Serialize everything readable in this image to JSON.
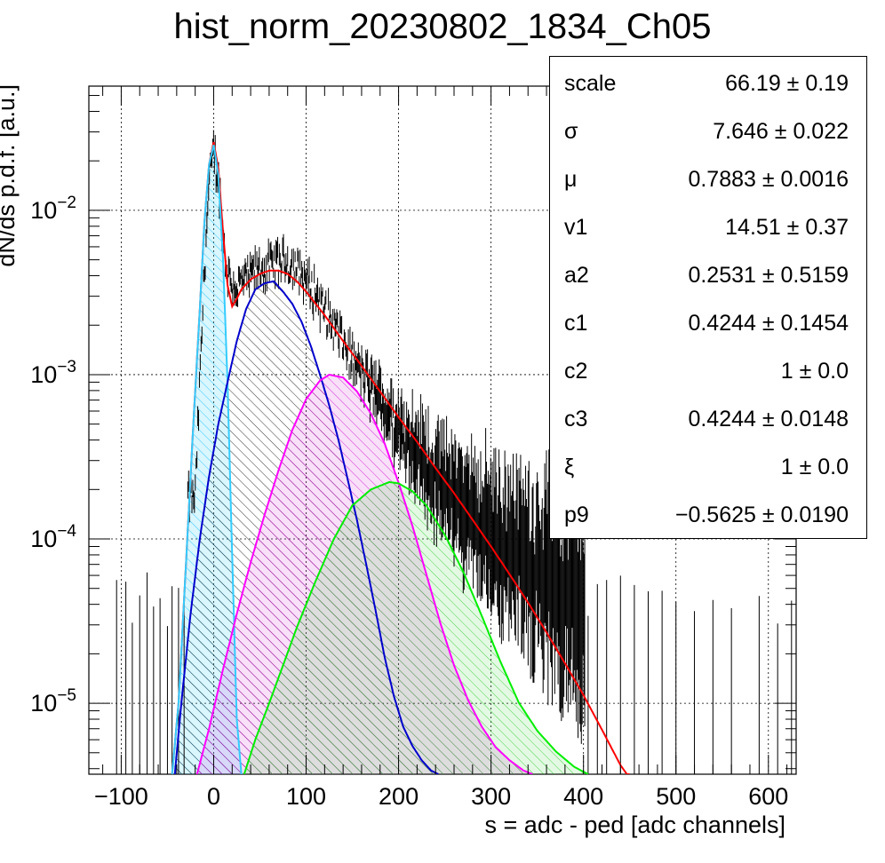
{
  "chart_data": {
    "type": "histogram-with-fit",
    "title": "hist_norm_20230802_1834_Ch05",
    "xlabel": "s = adc - ped [adc channels]",
    "ylabel": "dN/ds p.d.f. [a.u.]",
    "xlim": [
      -135,
      630
    ],
    "ylim": [
      3.7e-06,
      0.057
    ],
    "yscale": "log",
    "grid": true,
    "x_ticks": [
      -100,
      0,
      100,
      200,
      300,
      400,
      500,
      600
    ],
    "y_ticks": [
      {
        "value": 1e-05,
        "base": "10",
        "exp": "−5"
      },
      {
        "value": 0.0001,
        "base": "10",
        "exp": "−4"
      },
      {
        "value": 0.001,
        "base": "10",
        "exp": "−3"
      },
      {
        "value": 0.01,
        "base": "10",
        "exp": "−2"
      }
    ],
    "histogram": {
      "color": "#000000",
      "x": [
        -20,
        -15,
        -10,
        -5,
        0,
        5,
        10,
        15,
        20,
        25,
        30,
        40,
        50,
        60,
        70,
        80,
        90,
        100,
        110,
        120,
        130,
        140,
        150,
        160,
        170,
        180,
        190,
        200,
        220,
        240,
        260,
        280,
        300,
        320,
        340,
        360,
        380,
        400
      ],
      "y": [
        0.00018,
        0.0009,
        0.0045,
        0.014,
        0.024,
        0.016,
        0.0068,
        0.0042,
        0.0035,
        0.0034,
        0.0036,
        0.004,
        0.0044,
        0.0046,
        0.0048,
        0.005,
        0.0044,
        0.0038,
        0.0032,
        0.0025,
        0.002,
        0.0016,
        0.00125,
        0.001,
        0.00085,
        0.0007,
        0.00058,
        0.00048,
        0.00034,
        0.00024,
        0.00018,
        0.00014,
        0.00011,
        8.5e-05,
        7e-05,
        6e-05,
        5e-05,
        4e-05
      ]
    },
    "series": [
      {
        "color": "#ff0000",
        "x": [
          -45,
          -38,
          -30,
          -22,
          -15,
          -10,
          -5,
          0,
          5,
          10,
          15,
          20,
          25,
          30,
          40,
          50,
          60,
          70,
          80,
          90,
          100,
          120,
          140,
          160,
          180,
          200,
          220,
          240,
          260,
          280,
          300,
          320,
          340,
          360,
          380,
          400,
          420,
          440,
          450
        ],
        "y": [
          3.7e-06,
          1e-05,
          7e-05,
          0.0005,
          0.0025,
          0.0085,
          0.019,
          0.026,
          0.018,
          0.0075,
          0.0035,
          0.0026,
          0.0029,
          0.0033,
          0.0038,
          0.0041,
          0.0043,
          0.0043,
          0.0041,
          0.0037,
          0.0032,
          0.0023,
          0.0016,
          0.00113,
          0.00079,
          0.00055,
          0.00039,
          0.00027,
          0.00019,
          0.000131,
          9e-05,
          6.1e-05,
          4.1e-05,
          2.7e-05,
          1.75e-05,
          1.12e-05,
          6.9e-06,
          4.2e-06,
          3.5e-06
        ]
      },
      {
        "color": "#33ccff",
        "fill_color": "#33ccff",
        "x": [
          -45,
          -38,
          -30,
          -22,
          -15,
          -10,
          -5,
          0,
          5,
          10,
          15,
          20,
          25,
          30
        ],
        "y": [
          3.7e-06,
          1e-05,
          7e-05,
          0.0005,
          0.0025,
          0.0085,
          0.019,
          0.025,
          0.0165,
          0.0052,
          0.0009,
          8e-05,
          8e-06,
          3.7e-06
        ]
      },
      {
        "color": "#0000cc",
        "fill_color": "#000000",
        "x": [
          -42,
          -35,
          -25,
          -15,
          -5,
          5,
          15,
          25,
          35,
          45,
          55,
          65,
          75,
          85,
          95,
          105,
          115,
          125,
          135,
          145,
          155,
          165,
          175,
          185,
          195,
          205,
          215,
          225,
          235,
          243
        ],
        "y": [
          3.7e-06,
          1e-05,
          3.5e-05,
          0.0001,
          0.00024,
          0.0005,
          0.0009,
          0.0016,
          0.0025,
          0.0033,
          0.0036,
          0.0037,
          0.0032,
          0.0027,
          0.0021,
          0.0015,
          0.001,
          0.00065,
          0.0004,
          0.00023,
          0.00013,
          7e-05,
          3.7e-05,
          1.9e-05,
          1.1e-05,
          7.2e-06,
          5.5e-06,
          4.5e-06,
          3.9e-06,
          3.7e-06
        ]
      },
      {
        "color": "#ff00ff",
        "fill_color": "#cc00cc",
        "x": [
          -18,
          -5,
          10,
          25,
          40,
          55,
          70,
          85,
          100,
          115,
          125,
          140,
          155,
          170,
          185,
          200,
          215,
          230,
          245,
          260,
          275,
          290,
          305,
          320,
          335,
          345
        ],
        "y": [
          3.7e-06,
          7e-06,
          1.6e-05,
          3.5e-05,
          7.2e-05,
          0.00014,
          0.00026,
          0.00046,
          0.00071,
          0.00092,
          0.001,
          0.00096,
          0.00079,
          0.00058,
          0.00038,
          0.00022,
          0.00012,
          6.1e-05,
          3.1e-05,
          1.7e-05,
          1.05e-05,
          7.2e-06,
          5.4e-06,
          4.5e-06,
          3.9e-06,
          3.7e-06
        ]
      },
      {
        "color": "#00ee00",
        "fill_color": "#22cc22",
        "x": [
          33,
          45,
          60,
          75,
          90,
          110,
          130,
          150,
          170,
          190,
          200,
          215,
          230,
          250,
          270,
          290,
          310,
          330,
          350,
          370,
          390,
          405
        ],
        "y": [
          3.7e-06,
          6e-06,
          1e-05,
          1.7e-05,
          2.9e-05,
          5.5e-05,
          0.0001,
          0.00016,
          0.0002,
          0.000222,
          0.000218,
          0.000195,
          0.00016,
          0.000106,
          6.3e-05,
          3.4e-05,
          1.8e-05,
          1.01e-05,
          6.8e-06,
          5.1e-06,
          4.1e-06,
          3.7e-06
        ]
      }
    ]
  },
  "stats": {
    "rows": [
      {
        "name": "scale",
        "value": "66.19 ± 0.19"
      },
      {
        "name": "σ",
        "value": "7.646 ± 0.022"
      },
      {
        "name": "μ",
        "value": "0.7883 ± 0.0016"
      },
      {
        "name": "v1",
        "value": "14.51 ± 0.37"
      },
      {
        "name": "a2",
        "value": "0.2531 ± 0.5159"
      },
      {
        "name": "c1",
        "value": "0.4244 ± 0.1454"
      },
      {
        "name": "c2",
        "value": "1 ± 0.0"
      },
      {
        "name": "c3",
        "value": "0.4244 ± 0.0148"
      },
      {
        "name": "ξ",
        "value": "1 ± 0.0"
      },
      {
        "name": "p9",
        "value": "−0.5625 ± 0.0190"
      }
    ]
  }
}
